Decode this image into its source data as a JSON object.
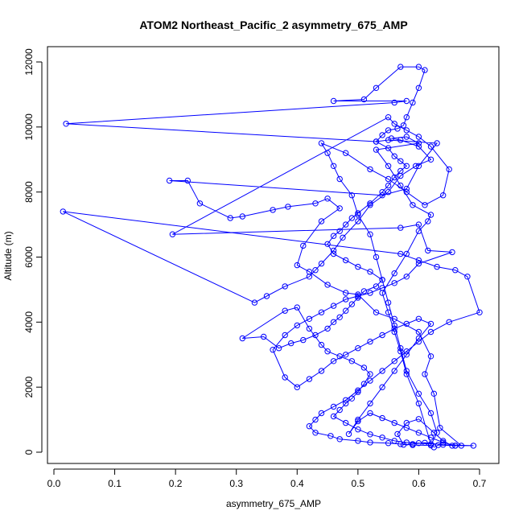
{
  "chart_data": {
    "type": "scatter",
    "title": "ATOM2 Northeast_Pacific_2 asymmetry_675_AMP",
    "xlabel": "asymmetry_675_AMP",
    "ylabel": "Altitude (m)",
    "xlim": [
      -0.01,
      0.73
    ],
    "ylim": [
      -350,
      12200
    ],
    "x_ticks": [
      0.0,
      0.1,
      0.2,
      0.3,
      0.4,
      0.5,
      0.6,
      0.7
    ],
    "x_tick_labels": [
      "0.0",
      "0.1",
      "0.2",
      "0.3",
      "0.4",
      "0.5",
      "0.6",
      "0.7"
    ],
    "y_ticks": [
      0,
      2000,
      4000,
      6000,
      8000,
      10000,
      12000
    ],
    "y_tick_labels": [
      "0",
      "2000",
      "4000",
      "6000",
      "8000",
      "10000",
      "12000"
    ],
    "grid": false,
    "marker": "open-circle",
    "connected": true,
    "color": "#0000ff",
    "series": [
      {
        "points": [
          [
            0.625,
            150
          ],
          [
            0.632,
            220
          ],
          [
            0.66,
            200
          ],
          [
            0.69,
            200
          ],
          [
            0.64,
            230
          ],
          [
            0.61,
            290
          ],
          [
            0.59,
            250
          ],
          [
            0.575,
            230
          ],
          [
            0.565,
            560
          ],
          [
            0.58,
            900
          ],
          [
            0.6,
            1020
          ],
          [
            0.625,
            600
          ],
          [
            0.64,
            350
          ],
          [
            0.655,
            200
          ],
          [
            0.67,
            200
          ],
          [
            0.635,
            750
          ],
          [
            0.625,
            1800
          ],
          [
            0.61,
            2400
          ],
          [
            0.62,
            2950
          ],
          [
            0.6,
            3700
          ],
          [
            0.56,
            4100
          ],
          [
            0.53,
            4300
          ],
          [
            0.5,
            4850
          ],
          [
            0.48,
            4900
          ],
          [
            0.45,
            5150
          ],
          [
            0.42,
            5550
          ],
          [
            0.4,
            5750
          ],
          [
            0.41,
            6350
          ],
          [
            0.44,
            7100
          ],
          [
            0.47,
            7500
          ],
          [
            0.45,
            7800
          ],
          [
            0.43,
            7650
          ],
          [
            0.385,
            7550
          ],
          [
            0.36,
            7450
          ],
          [
            0.31,
            7250
          ],
          [
            0.29,
            7200
          ],
          [
            0.24,
            7650
          ],
          [
            0.22,
            8350
          ],
          [
            0.19,
            8350
          ],
          [
            0.54,
            7900
          ],
          [
            0.58,
            8100
          ],
          [
            0.6,
            8800
          ],
          [
            0.63,
            9500
          ],
          [
            0.55,
            9600
          ],
          [
            0.53,
            9550
          ],
          [
            0.02,
            10100
          ],
          [
            0.56,
            10750
          ],
          [
            0.58,
            10800
          ],
          [
            0.46,
            10800
          ],
          [
            0.51,
            10850
          ],
          [
            0.53,
            11200
          ],
          [
            0.57,
            11850
          ],
          [
            0.6,
            11850
          ],
          [
            0.61,
            11750
          ],
          [
            0.6,
            11200
          ],
          [
            0.59,
            10750
          ],
          [
            0.58,
            10300
          ],
          [
            0.575,
            10050
          ],
          [
            0.565,
            9950
          ],
          [
            0.55,
            9900
          ],
          [
            0.54,
            9750
          ],
          [
            0.53,
            9550
          ],
          [
            0.55,
            9350
          ],
          [
            0.56,
            9100
          ],
          [
            0.57,
            8950
          ],
          [
            0.58,
            8800
          ],
          [
            0.57,
            8650
          ],
          [
            0.56,
            8450
          ],
          [
            0.55,
            8200
          ],
          [
            0.54,
            8000
          ],
          [
            0.52,
            7650
          ],
          [
            0.5,
            7350
          ],
          [
            0.49,
            7200
          ],
          [
            0.48,
            7000
          ],
          [
            0.47,
            6800
          ],
          [
            0.46,
            6650
          ],
          [
            0.45,
            6400
          ],
          [
            0.46,
            6100
          ],
          [
            0.48,
            5900
          ],
          [
            0.5,
            5700
          ],
          [
            0.52,
            5550
          ],
          [
            0.54,
            5300
          ],
          [
            0.53,
            5100
          ],
          [
            0.51,
            4950
          ],
          [
            0.5,
            4750
          ],
          [
            0.49,
            4550
          ],
          [
            0.48,
            4350
          ],
          [
            0.47,
            4150
          ],
          [
            0.46,
            4000
          ],
          [
            0.45,
            3800
          ],
          [
            0.43,
            3600
          ],
          [
            0.41,
            3450
          ],
          [
            0.39,
            3350
          ],
          [
            0.37,
            3200
          ],
          [
            0.345,
            3550
          ],
          [
            0.31,
            3500
          ],
          [
            0.38,
            4350
          ],
          [
            0.4,
            4450
          ],
          [
            0.42,
            3800
          ],
          [
            0.44,
            3300
          ],
          [
            0.45,
            3100
          ],
          [
            0.47,
            2950
          ],
          [
            0.49,
            2800
          ],
          [
            0.51,
            2600
          ],
          [
            0.52,
            2400
          ],
          [
            0.51,
            2100
          ],
          [
            0.5,
            1850
          ],
          [
            0.49,
            1650
          ],
          [
            0.48,
            1500
          ],
          [
            0.47,
            1300
          ],
          [
            0.46,
            1100
          ],
          [
            0.48,
            900
          ],
          [
            0.5,
            700
          ],
          [
            0.52,
            550
          ],
          [
            0.54,
            450
          ],
          [
            0.56,
            350
          ],
          [
            0.58,
            300
          ],
          [
            0.6,
            280
          ],
          [
            0.62,
            250
          ],
          [
            0.6,
            1500
          ],
          [
            0.58,
            2400
          ],
          [
            0.57,
            3100
          ],
          [
            0.56,
            3700
          ],
          [
            0.55,
            4300
          ],
          [
            0.54,
            4900
          ],
          [
            0.56,
            5500
          ],
          [
            0.58,
            6100
          ],
          [
            0.6,
            6800
          ],
          [
            0.615,
            7100
          ],
          [
            0.62,
            7300
          ],
          [
            0.59,
            7600
          ],
          [
            0.57,
            8200
          ],
          [
            0.55,
            8800
          ],
          [
            0.53,
            9300
          ],
          [
            0.6,
            9500
          ],
          [
            0.58,
            9700
          ],
          [
            0.555,
            9650
          ],
          [
            0.57,
            9600
          ],
          [
            0.6,
            9400
          ],
          [
            0.62,
            9000
          ],
          [
            0.595,
            8800
          ],
          [
            0.57,
            8500
          ],
          [
            0.55,
            8000
          ],
          [
            0.52,
            7600
          ],
          [
            0.5,
            7100
          ],
          [
            0.475,
            6600
          ],
          [
            0.46,
            6200
          ],
          [
            0.44,
            5800
          ],
          [
            0.43,
            5600
          ],
          [
            0.42,
            5400
          ],
          [
            0.38,
            5100
          ],
          [
            0.35,
            4800
          ],
          [
            0.33,
            4600
          ],
          [
            0.015,
            7400
          ],
          [
            0.57,
            6100
          ],
          [
            0.6,
            5900
          ],
          [
            0.63,
            5700
          ],
          [
            0.66,
            5600
          ],
          [
            0.68,
            5400
          ],
          [
            0.7,
            4300
          ],
          [
            0.65,
            4000
          ],
          [
            0.62,
            3700
          ],
          [
            0.6,
            3400
          ],
          [
            0.58,
            3100
          ],
          [
            0.56,
            2800
          ],
          [
            0.54,
            2500
          ],
          [
            0.52,
            2200
          ],
          [
            0.5,
            1900
          ],
          [
            0.48,
            1600
          ],
          [
            0.46,
            1400
          ],
          [
            0.44,
            1200
          ],
          [
            0.43,
            1000
          ],
          [
            0.42,
            800
          ],
          [
            0.43,
            600
          ],
          [
            0.455,
            500
          ],
          [
            0.47,
            400
          ],
          [
            0.5,
            350
          ],
          [
            0.52,
            300
          ],
          [
            0.55,
            280
          ],
          [
            0.57,
            250
          ],
          [
            0.59,
            220
          ],
          [
            0.62,
            210
          ],
          [
            0.63,
            600
          ],
          [
            0.62,
            1200
          ],
          [
            0.6,
            1800
          ],
          [
            0.58,
            2500
          ],
          [
            0.57,
            3200
          ],
          [
            0.56,
            3900
          ],
          [
            0.55,
            4600
          ],
          [
            0.54,
            5300
          ],
          [
            0.53,
            6000
          ],
          [
            0.52,
            6700
          ],
          [
            0.5,
            7300
          ],
          [
            0.49,
            7900
          ],
          [
            0.47,
            8400
          ],
          [
            0.46,
            8800
          ],
          [
            0.45,
            9200
          ],
          [
            0.44,
            9500
          ],
          [
            0.48,
            9200
          ],
          [
            0.52,
            8700
          ],
          [
            0.55,
            8400
          ],
          [
            0.58,
            8000
          ],
          [
            0.61,
            7600
          ],
          [
            0.64,
            7900
          ],
          [
            0.65,
            8700
          ],
          [
            0.62,
            9400
          ],
          [
            0.6,
            9700
          ],
          [
            0.58,
            9900
          ],
          [
            0.56,
            10100
          ],
          [
            0.55,
            10300
          ],
          [
            0.195,
            6700
          ],
          [
            0.57,
            6900
          ],
          [
            0.6,
            7000
          ],
          [
            0.615,
            6200
          ],
          [
            0.655,
            6150
          ],
          [
            0.6,
            5800
          ],
          [
            0.58,
            5400
          ],
          [
            0.56,
            5200
          ],
          [
            0.54,
            5050
          ],
          [
            0.52,
            4900
          ],
          [
            0.5,
            4800
          ],
          [
            0.48,
            4700
          ],
          [
            0.46,
            4500
          ],
          [
            0.44,
            4300
          ],
          [
            0.42,
            4100
          ],
          [
            0.4,
            3900
          ],
          [
            0.38,
            3600
          ],
          [
            0.36,
            3150
          ],
          [
            0.38,
            2300
          ],
          [
            0.4,
            2000
          ],
          [
            0.42,
            2250
          ],
          [
            0.44,
            2500
          ],
          [
            0.46,
            2800
          ],
          [
            0.48,
            3000
          ],
          [
            0.5,
            3200
          ],
          [
            0.52,
            3400
          ],
          [
            0.54,
            3600
          ],
          [
            0.56,
            3800
          ],
          [
            0.58,
            3950
          ],
          [
            0.6,
            4100
          ],
          [
            0.62,
            3950
          ],
          [
            0.6,
            3500
          ],
          [
            0.58,
            3000
          ],
          [
            0.56,
            2500
          ],
          [
            0.54,
            2000
          ],
          [
            0.52,
            1500
          ],
          [
            0.5,
            1000
          ],
          [
            0.485,
            560
          ],
          [
            0.5,
            950
          ],
          [
            0.52,
            1200
          ],
          [
            0.54,
            1050
          ],
          [
            0.56,
            900
          ],
          [
            0.58,
            750
          ],
          [
            0.6,
            600
          ],
          [
            0.62,
            450
          ],
          [
            0.64,
            300
          ],
          [
            0.66,
            200
          ]
        ]
      }
    ]
  }
}
